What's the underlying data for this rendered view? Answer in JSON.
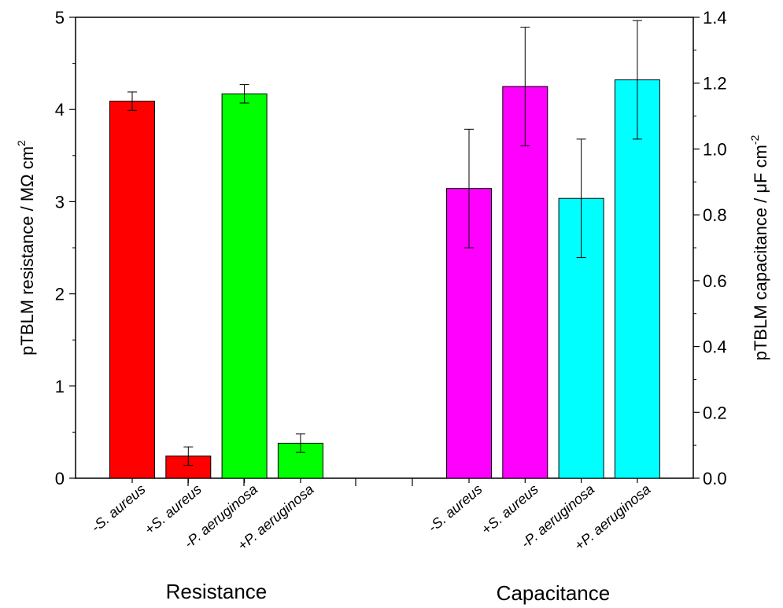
{
  "chart_data": {
    "type": "bar",
    "left_axis": {
      "label": "pTBLM resistance / MΩ cm",
      "label_superscript": "2",
      "ylim": [
        0,
        5
      ],
      "ticks": [
        "0",
        "1",
        "2",
        "3",
        "4",
        "5"
      ]
    },
    "right_axis": {
      "label": "pTBLM capacitance / μF cm",
      "label_superscript": "-2",
      "ylim": [
        0,
        1.4
      ],
      "ticks": [
        "0.0",
        "0.2",
        "0.4",
        "0.6",
        "0.8",
        "1.0",
        "1.2",
        "1.4"
      ]
    },
    "groups": [
      {
        "name": "Resistance",
        "axis": "left",
        "bars": [
          {
            "prefix": "-",
            "label": "S. aureus",
            "value": 4.09,
            "error": 0.1,
            "color": "#ff0000"
          },
          {
            "prefix": "+",
            "label": "S. aureus",
            "value": 0.24,
            "error": 0.1,
            "color": "#ff0000"
          },
          {
            "prefix": "-",
            "label": "P. aeruginosa",
            "value": 4.17,
            "error": 0.1,
            "color": "#00ff00"
          },
          {
            "prefix": "+",
            "label": "P. aeruginosa",
            "value": 0.38,
            "error": 0.1,
            "color": "#00ff00"
          }
        ]
      },
      {
        "name": "Capacitance",
        "axis": "right",
        "bars": [
          {
            "prefix": "-",
            "label": "S. aureus",
            "value": 0.88,
            "error": 0.1,
            "color": "#ff00ff"
          },
          {
            "prefix": "+",
            "label": "S. aureus",
            "value": 1.19,
            "error": 0.1,
            "color": "#ff00ff"
          },
          {
            "prefix": "-",
            "label": "P. aeruginosa",
            "value": 0.85,
            "error": 0.1,
            "color": "#00ffff"
          },
          {
            "prefix": "+",
            "label": "P. aeruginosa",
            "value": 1.21,
            "error": 0.1,
            "color": "#00ffff"
          }
        ]
      }
    ],
    "grid": false,
    "legend": "none"
  }
}
